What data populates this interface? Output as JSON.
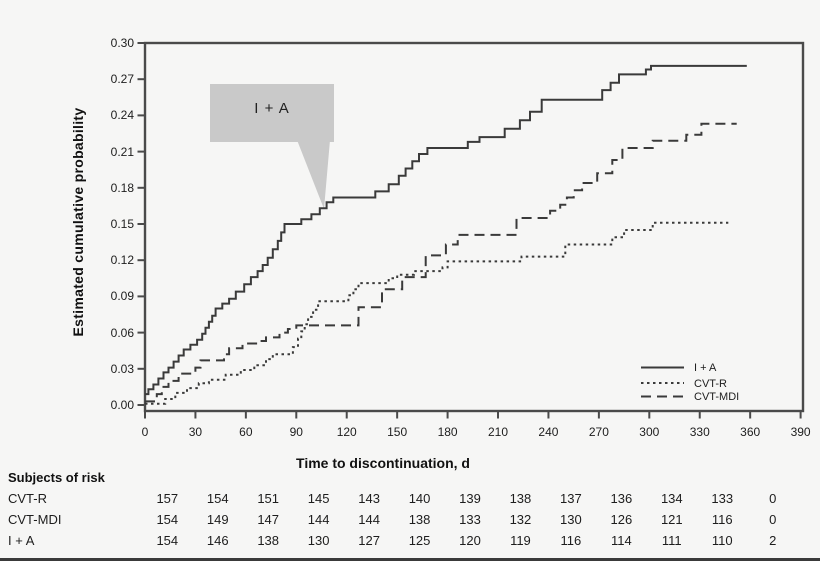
{
  "figure": {
    "y_axis_label": "Estimated cumulative probability",
    "x_axis_label": "Time to discontinuation, d",
    "callout_label": "I + A"
  },
  "colors": {
    "background": "#f6f6f5",
    "line_ink": "#3a3a3a",
    "axis_ink": "#4a4a4a",
    "callout_fill": "#c9c9c9",
    "text_ink": "#1d1d1d"
  },
  "risk_table": {
    "header": "Subjects of risk",
    "rows": [
      {
        "label": "CVT-R",
        "values": [
          "157",
          "154",
          "151",
          "145",
          "143",
          "140",
          "139",
          "138",
          "137",
          "136",
          "134",
          "133",
          "0"
        ]
      },
      {
        "label": "CVT-MDI",
        "values": [
          "154",
          "149",
          "147",
          "144",
          "144",
          "138",
          "133",
          "132",
          "130",
          "126",
          "121",
          "116",
          "0"
        ]
      },
      {
        "label": "I + A",
        "values": [
          "154",
          "146",
          "138",
          "130",
          "127",
          "125",
          "120",
          "119",
          "116",
          "114",
          "111",
          "110",
          "2"
        ]
      }
    ]
  },
  "chart_data": {
    "type": "line",
    "subtype": "kaplan-meier-step",
    "title": "",
    "xlabel": "Time to discontinuation, d",
    "ylabel": "Estimated cumulative probability",
    "xlim": [
      0,
      390
    ],
    "ylim": [
      0.0,
      0.3
    ],
    "x_ticks": [
      0,
      30,
      60,
      90,
      120,
      150,
      180,
      210,
      240,
      270,
      300,
      330,
      360,
      390
    ],
    "y_ticks": [
      0.0,
      0.03,
      0.06,
      0.09,
      0.12,
      0.15,
      0.18,
      0.21,
      0.24,
      0.27,
      0.3
    ],
    "grid": false,
    "legend_position": "lower right",
    "annotation": {
      "text": "I + A",
      "points_to_x": 105,
      "points_to_y": 0.163
    },
    "series": [
      {
        "name": "I + A",
        "style": "solid",
        "points": [
          [
            0,
            0.009
          ],
          [
            2,
            0.013
          ],
          [
            5,
            0.017
          ],
          [
            8,
            0.022
          ],
          [
            11,
            0.027
          ],
          [
            14,
            0.031
          ],
          [
            17,
            0.036
          ],
          [
            20,
            0.041
          ],
          [
            23,
            0.046
          ],
          [
            27,
            0.05
          ],
          [
            31,
            0.054
          ],
          [
            34,
            0.059
          ],
          [
            36,
            0.064
          ],
          [
            38,
            0.069
          ],
          [
            40,
            0.074
          ],
          [
            42,
            0.08
          ],
          [
            46,
            0.084
          ],
          [
            50,
            0.088
          ],
          [
            54,
            0.094
          ],
          [
            59,
            0.1
          ],
          [
            63,
            0.106
          ],
          [
            67,
            0.111
          ],
          [
            70,
            0.116
          ],
          [
            73,
            0.122
          ],
          [
            76,
            0.129
          ],
          [
            79,
            0.136
          ],
          [
            81,
            0.143
          ],
          [
            83,
            0.15
          ],
          [
            93,
            0.154
          ],
          [
            99,
            0.158
          ],
          [
            104,
            0.163
          ],
          [
            108,
            0.168
          ],
          [
            112,
            0.172
          ],
          [
            137,
            0.177
          ],
          [
            145,
            0.183
          ],
          [
            151,
            0.19
          ],
          [
            155,
            0.196
          ],
          [
            159,
            0.202
          ],
          [
            163,
            0.208
          ],
          [
            168,
            0.213
          ],
          [
            192,
            0.218
          ],
          [
            199,
            0.222
          ],
          [
            214,
            0.229
          ],
          [
            223,
            0.236
          ],
          [
            229,
            0.243
          ],
          [
            236,
            0.253
          ],
          [
            272,
            0.261
          ],
          [
            277,
            0.267
          ],
          [
            282,
            0.274
          ],
          [
            298,
            0.278
          ],
          [
            301,
            0.281
          ],
          [
            358,
            0.281
          ]
        ]
      },
      {
        "name": "CVT-R",
        "style": "dotted",
        "points": [
          [
            0,
            0.001
          ],
          [
            12,
            0.005
          ],
          [
            18,
            0.01
          ],
          [
            25,
            0.014
          ],
          [
            32,
            0.018
          ],
          [
            38,
            0.021
          ],
          [
            48,
            0.025
          ],
          [
            57,
            0.029
          ],
          [
            65,
            0.033
          ],
          [
            72,
            0.038
          ],
          [
            76,
            0.042
          ],
          [
            88,
            0.048
          ],
          [
            91,
            0.055
          ],
          [
            93,
            0.061
          ],
          [
            95,
            0.067
          ],
          [
            97,
            0.073
          ],
          [
            100,
            0.079
          ],
          [
            103,
            0.086
          ],
          [
            121,
            0.091
          ],
          [
            124,
            0.096
          ],
          [
            127,
            0.101
          ],
          [
            145,
            0.105
          ],
          [
            150,
            0.108
          ],
          [
            160,
            0.111
          ],
          [
            177,
            0.114
          ],
          [
            180,
            0.119
          ],
          [
            224,
            0.123
          ],
          [
            250,
            0.133
          ],
          [
            278,
            0.139
          ],
          [
            285,
            0.145
          ],
          [
            302,
            0.151
          ],
          [
            347,
            0.151
          ]
        ]
      },
      {
        "name": "CVT-MDI",
        "style": "dashed",
        "points": [
          [
            0,
            0.003
          ],
          [
            7,
            0.009
          ],
          [
            10,
            0.015
          ],
          [
            14,
            0.02
          ],
          [
            20,
            0.026
          ],
          [
            30,
            0.031
          ],
          [
            33,
            0.037
          ],
          [
            47,
            0.042
          ],
          [
            50,
            0.047
          ],
          [
            58,
            0.051
          ],
          [
            68,
            0.053
          ],
          [
            72,
            0.056
          ],
          [
            80,
            0.06
          ],
          [
            85,
            0.063
          ],
          [
            90,
            0.066
          ],
          [
            127,
            0.081
          ],
          [
            141,
            0.096
          ],
          [
            153,
            0.106
          ],
          [
            167,
            0.124
          ],
          [
            179,
            0.133
          ],
          [
            186,
            0.141
          ],
          [
            221,
            0.155
          ],
          [
            241,
            0.161
          ],
          [
            247,
            0.166
          ],
          [
            251,
            0.172
          ],
          [
            255,
            0.178
          ],
          [
            260,
            0.184
          ],
          [
            269,
            0.192
          ],
          [
            278,
            0.203
          ],
          [
            284,
            0.213
          ],
          [
            302,
            0.219
          ],
          [
            322,
            0.224
          ],
          [
            331,
            0.233
          ],
          [
            352,
            0.233
          ]
        ]
      }
    ]
  }
}
